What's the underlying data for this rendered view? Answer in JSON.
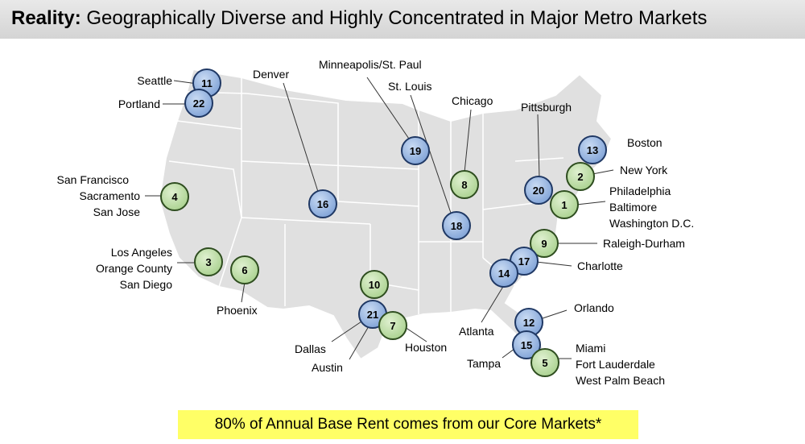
{
  "title": {
    "bold": "Reality:",
    "rest": "Geographically Diverse and Highly Concentrated in Major Metro Markets"
  },
  "colors": {
    "blue_marker": "#7ea1d6",
    "green_marker": "#a9d18e",
    "map_fill": "#e0e0e0",
    "map_border": "#ffffff",
    "banner": "#ffff66"
  },
  "markets": [
    {
      "rank": "11",
      "color": "blue",
      "labels": [
        "Seattle"
      ]
    },
    {
      "rank": "22",
      "color": "blue",
      "labels": [
        "Portland"
      ]
    },
    {
      "rank": "16",
      "color": "blue",
      "labels": [
        "Denver"
      ]
    },
    {
      "rank": "19",
      "color": "blue",
      "labels": [
        "Minneapolis/St. Paul"
      ]
    },
    {
      "rank": "18",
      "color": "blue",
      "labels": [
        "St. Louis"
      ]
    },
    {
      "rank": "8",
      "color": "green",
      "labels": [
        "Chicago"
      ]
    },
    {
      "rank": "20",
      "color": "blue",
      "labels": [
        "Pittsburgh"
      ]
    },
    {
      "rank": "13",
      "color": "blue",
      "labels": [
        "Boston"
      ]
    },
    {
      "rank": "2",
      "color": "green",
      "labels": [
        "New York"
      ]
    },
    {
      "rank": "1",
      "color": "green",
      "labels": [
        "Philadelphia",
        "Baltimore",
        "Washington D.C."
      ]
    },
    {
      "rank": "4",
      "color": "green",
      "labels": [
        "San Francisco",
        "Sacramento",
        "San Jose"
      ]
    },
    {
      "rank": "3",
      "color": "green",
      "labels": [
        "Los Angeles",
        "Orange County",
        "San Diego"
      ]
    },
    {
      "rank": "6",
      "color": "green",
      "labels": [
        "Phoenix"
      ]
    },
    {
      "rank": "9",
      "color": "green",
      "labels": [
        "Raleigh-Durham"
      ]
    },
    {
      "rank": "17",
      "color": "blue",
      "labels": [
        "Charlotte"
      ]
    },
    {
      "rank": "14",
      "color": "blue",
      "labels": [
        "Atlanta"
      ]
    },
    {
      "rank": "10",
      "color": "green",
      "labels": []
    },
    {
      "rank": "21",
      "color": "blue",
      "labels": [
        "Dallas",
        "Austin"
      ]
    },
    {
      "rank": "7",
      "color": "green",
      "labels": [
        "Houston"
      ]
    },
    {
      "rank": "12",
      "color": "blue",
      "labels": [
        "Orlando"
      ]
    },
    {
      "rank": "15",
      "color": "blue",
      "labels": [
        "Tampa"
      ]
    },
    {
      "rank": "5",
      "color": "green",
      "labels": [
        "Miami",
        "Fort Lauderdale",
        "West Palm Beach"
      ]
    }
  ],
  "footnote": "80% of Annual Base Rent comes from our Core Markets*"
}
